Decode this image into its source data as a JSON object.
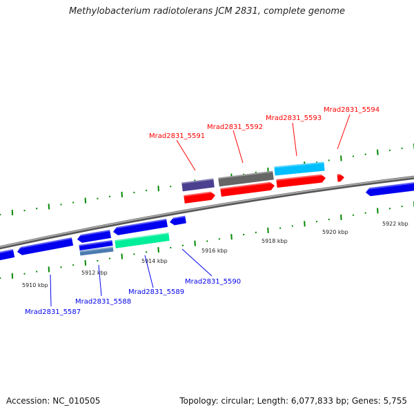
{
  "title": "Methylobacterium radiotolerans JCM 2831, complete genome",
  "footer": {
    "accession": "Accession: NC_010505",
    "topology": "Topology: circular; Length: 6,077,833 bp; Genes: 5,755"
  },
  "scale_labels": [
    "5910 kbp",
    "5912 kbp",
    "5914 kbp",
    "5916 kbp",
    "5918 kbp",
    "5920 kbp",
    "5922 kbp"
  ],
  "forward_genes": [
    "Mrad2831_5591",
    "Mrad2831_5592",
    "Mrad2831_5593",
    "Mrad2831_5594"
  ],
  "reverse_genes": [
    "Mrad2831_5587",
    "Mrad2831_5588",
    "Mrad2831_5589",
    "Mrad2831_5590"
  ],
  "colors": {
    "forward": "#ff0000",
    "reverse": "#0000ee",
    "backbone": "#888888",
    "ticks": "#008800",
    "purple": "#4b4090",
    "gray": "#666666",
    "cyan": "#00bfff",
    "green": "#00ee99",
    "steel": "#4a7ab0"
  }
}
